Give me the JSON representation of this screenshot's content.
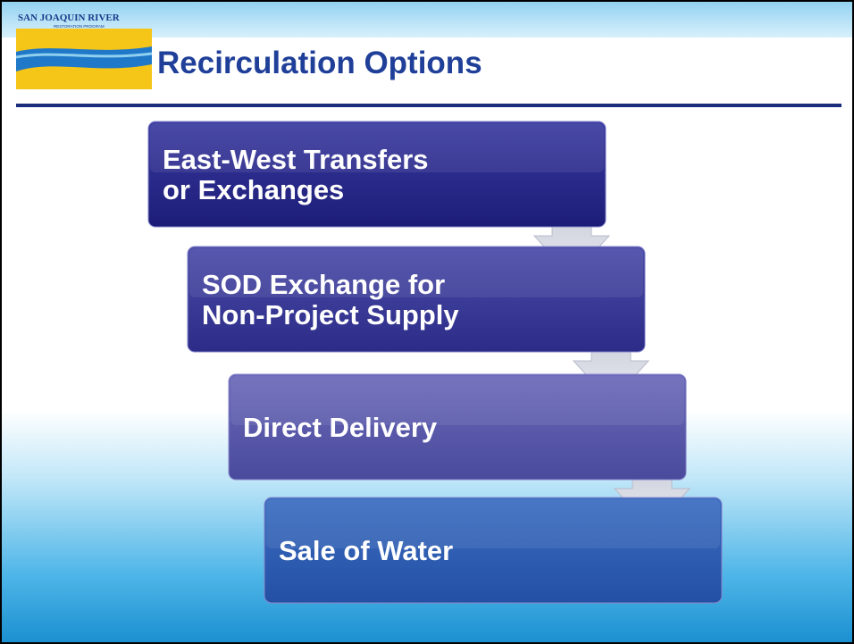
{
  "logo": {
    "name": "SAN JOAQUIN RIVER",
    "program": "RESTORATION PROGRAM"
  },
  "title": "Recirculation Options",
  "steps": [
    {
      "lines": [
        "East-West Transfers",
        "or Exchanges"
      ]
    },
    {
      "lines": [
        "SOD Exchange for",
        "Non-Project Supply"
      ]
    },
    {
      "lines": [
        "Direct Delivery"
      ]
    },
    {
      "lines": [
        "Sale of Water"
      ]
    }
  ]
}
